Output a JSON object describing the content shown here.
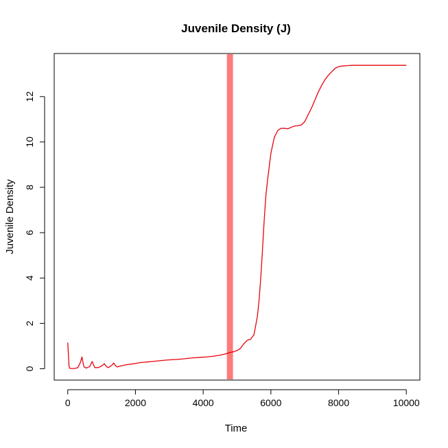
{
  "chart_data": {
    "type": "line",
    "title": "Juvenile Density (J)",
    "xlabel": "Time",
    "ylabel": "Juvenile Density",
    "xlim": [
      -400,
      10400
    ],
    "ylim": [
      -0.5,
      13.9
    ],
    "x_ticks": [
      0,
      2000,
      4000,
      6000,
      8000,
      10000
    ],
    "y_ticks": [
      0,
      2,
      4,
      6,
      8,
      10,
      12
    ],
    "grid": false,
    "legend": "none",
    "line_color": "#e8000b",
    "highlight_band": {
      "x_start": 4700,
      "x_end": 4880,
      "color": "#ff7b7b"
    },
    "series": [
      {
        "x": [
          0,
          20,
          40,
          60,
          100,
          200,
          300,
          380,
          420,
          440,
          480,
          550,
          650,
          720,
          760,
          800,
          900,
          1000,
          1080,
          1140,
          1200,
          1300,
          1360,
          1400,
          1460,
          1550,
          1650,
          1750,
          1850,
          1950,
          2050,
          2200,
          2350,
          2500,
          2700,
          2900,
          3100,
          3300,
          3500,
          3700,
          3900,
          4100,
          4300,
          4500,
          4650,
          4800,
          4900,
          5000,
          5100,
          5200,
          5300,
          5400,
          5500,
          5600,
          5650,
          5700,
          5750,
          5800,
          5850,
          5900,
          5950,
          6000,
          6100,
          6200,
          6300,
          6400,
          6500,
          6600,
          6700,
          6800,
          6900,
          7000,
          7100,
          7200,
          7300,
          7400,
          7500,
          7600,
          7700,
          7800,
          7900,
          8000,
          8100,
          8200,
          8300,
          8400,
          8500,
          8600,
          8800,
          9000,
          9200,
          9500,
          10000
        ],
        "y": [
          1.15,
          0.6,
          0.1,
          0.02,
          0.01,
          0.01,
          0.05,
          0.3,
          0.52,
          0.35,
          0.08,
          0.03,
          0.1,
          0.32,
          0.18,
          0.05,
          0.05,
          0.12,
          0.22,
          0.1,
          0.05,
          0.15,
          0.25,
          0.15,
          0.08,
          0.12,
          0.15,
          0.18,
          0.2,
          0.22,
          0.25,
          0.28,
          0.3,
          0.32,
          0.35,
          0.38,
          0.4,
          0.42,
          0.45,
          0.48,
          0.5,
          0.52,
          0.55,
          0.6,
          0.65,
          0.72,
          0.75,
          0.8,
          0.9,
          1.1,
          1.25,
          1.3,
          1.5,
          2.3,
          3.0,
          4.0,
          5.2,
          6.5,
          7.6,
          8.3,
          8.9,
          9.5,
          10.2,
          10.5,
          10.6,
          10.6,
          10.58,
          10.65,
          10.7,
          10.72,
          10.75,
          10.9,
          11.2,
          11.5,
          11.85,
          12.2,
          12.5,
          12.75,
          12.95,
          13.1,
          13.25,
          13.32,
          13.35,
          13.36,
          13.37,
          13.38,
          13.38,
          13.38,
          13.38,
          13.38,
          13.38,
          13.38,
          13.38
        ]
      }
    ]
  }
}
